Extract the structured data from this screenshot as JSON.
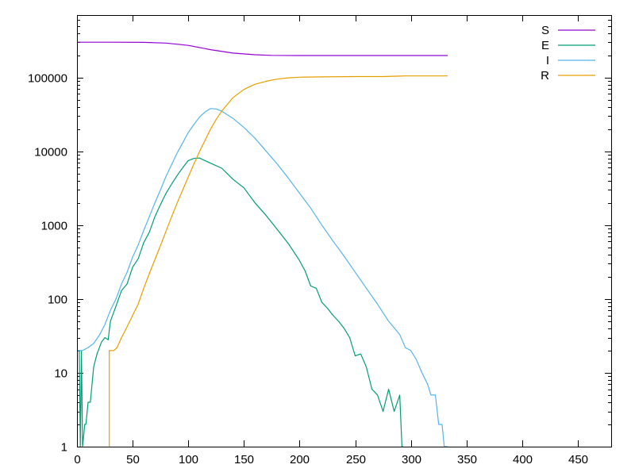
{
  "chart_data": {
    "type": "line",
    "title": "",
    "xlabel": "",
    "ylabel": "",
    "xlim": [
      0,
      480
    ],
    "ylim": [
      1,
      700000
    ],
    "y_scale": "log",
    "grid": false,
    "legend_position": "top-right",
    "x_ticks": [
      0,
      50,
      100,
      150,
      200,
      250,
      300,
      350,
      400,
      450
    ],
    "y_ticks": [
      1,
      10,
      100,
      1000,
      10000,
      100000
    ],
    "x_tick_labels": [
      "0",
      "50",
      "100",
      "150",
      "200",
      "250",
      "300",
      "350",
      "400",
      "450"
    ],
    "y_tick_labels": [
      "1",
      "10",
      "100",
      "1000",
      "10000",
      "100000"
    ],
    "series": [
      {
        "name": "S",
        "color": "#9400d3",
        "points": [
          [
            0,
            300000
          ],
          [
            30,
            300000
          ],
          [
            60,
            299000
          ],
          [
            80,
            292000
          ],
          [
            100,
            272000
          ],
          [
            120,
            238000
          ],
          [
            140,
            214000
          ],
          [
            160,
            203000
          ],
          [
            175,
            199000
          ],
          [
            200,
            198000
          ],
          [
            250,
            198000
          ],
          [
            300,
            198000
          ],
          [
            333,
            198000
          ]
        ]
      },
      {
        "name": "E",
        "color": "#009e73",
        "points": [
          [
            0,
            20
          ],
          [
            2,
            20
          ],
          [
            3,
            1
          ],
          [
            4,
            20
          ],
          [
            5,
            1
          ],
          [
            7,
            2
          ],
          [
            8,
            2
          ],
          [
            10,
            4
          ],
          [
            12,
            4
          ],
          [
            15,
            12
          ],
          [
            18,
            18
          ],
          [
            22,
            26
          ],
          [
            25,
            30
          ],
          [
            28,
            28
          ],
          [
            30,
            50
          ],
          [
            35,
            80
          ],
          [
            40,
            130
          ],
          [
            45,
            160
          ],
          [
            50,
            270
          ],
          [
            55,
            350
          ],
          [
            60,
            580
          ],
          [
            65,
            800
          ],
          [
            70,
            1300
          ],
          [
            75,
            1900
          ],
          [
            80,
            2700
          ],
          [
            85,
            3600
          ],
          [
            90,
            4700
          ],
          [
            95,
            6000
          ],
          [
            100,
            7500
          ],
          [
            105,
            8000
          ],
          [
            110,
            8100
          ],
          [
            115,
            7500
          ],
          [
            120,
            6900
          ],
          [
            130,
            5900
          ],
          [
            140,
            4200
          ],
          [
            150,
            3200
          ],
          [
            160,
            2000
          ],
          [
            170,
            1350
          ],
          [
            180,
            870
          ],
          [
            190,
            560
          ],
          [
            200,
            330
          ],
          [
            205,
            240
          ],
          [
            210,
            150
          ],
          [
            215,
            140
          ],
          [
            220,
            90
          ],
          [
            225,
            75
          ],
          [
            230,
            60
          ],
          [
            235,
            50
          ],
          [
            240,
            40
          ],
          [
            245,
            30
          ],
          [
            250,
            17
          ],
          [
            255,
            18
          ],
          [
            260,
            12
          ],
          [
            265,
            6
          ],
          [
            270,
            5
          ],
          [
            275,
            3
          ],
          [
            280,
            6
          ],
          [
            285,
            3
          ],
          [
            290,
            5
          ],
          [
            292,
            1
          ],
          [
            293,
            1
          ]
        ]
      },
      {
        "name": "I",
        "color": "#56b4e9",
        "points": [
          [
            0,
            20
          ],
          [
            5,
            20
          ],
          [
            10,
            22
          ],
          [
            15,
            25
          ],
          [
            20,
            32
          ],
          [
            25,
            45
          ],
          [
            30,
            70
          ],
          [
            35,
            100
          ],
          [
            40,
            160
          ],
          [
            45,
            230
          ],
          [
            50,
            370
          ],
          [
            55,
            540
          ],
          [
            60,
            850
          ],
          [
            65,
            1300
          ],
          [
            70,
            2000
          ],
          [
            75,
            3000
          ],
          [
            80,
            4600
          ],
          [
            85,
            6600
          ],
          [
            90,
            9500
          ],
          [
            95,
            13000
          ],
          [
            100,
            18000
          ],
          [
            105,
            23000
          ],
          [
            110,
            29000
          ],
          [
            115,
            34000
          ],
          [
            120,
            38000
          ],
          [
            125,
            37500
          ],
          [
            130,
            35000
          ],
          [
            140,
            28000
          ],
          [
            150,
            21000
          ],
          [
            160,
            15000
          ],
          [
            170,
            10000
          ],
          [
            180,
            6700
          ],
          [
            190,
            4300
          ],
          [
            200,
            2700
          ],
          [
            210,
            1700
          ],
          [
            220,
            1000
          ],
          [
            230,
            610
          ],
          [
            240,
            380
          ],
          [
            250,
            230
          ],
          [
            260,
            140
          ],
          [
            270,
            85
          ],
          [
            280,
            50
          ],
          [
            290,
            33
          ],
          [
            295,
            22
          ],
          [
            300,
            20
          ],
          [
            305,
            15
          ],
          [
            310,
            10
          ],
          [
            315,
            7
          ],
          [
            318,
            5
          ],
          [
            322,
            5
          ],
          [
            325,
            2
          ],
          [
            328,
            2
          ],
          [
            330,
            1
          ],
          [
            333,
            1
          ]
        ]
      },
      {
        "name": "R",
        "color": "#e69f00",
        "points": [
          [
            29,
            1
          ],
          [
            29,
            20
          ],
          [
            33,
            20
          ],
          [
            36,
            22
          ],
          [
            40,
            30
          ],
          [
            45,
            42
          ],
          [
            50,
            60
          ],
          [
            55,
            85
          ],
          [
            60,
            140
          ],
          [
            65,
            220
          ],
          [
            70,
            340
          ],
          [
            75,
            530
          ],
          [
            80,
            830
          ],
          [
            85,
            1300
          ],
          [
            90,
            2000
          ],
          [
            95,
            3000
          ],
          [
            100,
            4500
          ],
          [
            105,
            6700
          ],
          [
            110,
            9800
          ],
          [
            115,
            14000
          ],
          [
            120,
            20000
          ],
          [
            125,
            27000
          ],
          [
            130,
            35000
          ],
          [
            140,
            53000
          ],
          [
            150,
            69000
          ],
          [
            160,
            81000
          ],
          [
            170,
            89000
          ],
          [
            180,
            95000
          ],
          [
            190,
            99000
          ],
          [
            200,
            101000
          ],
          [
            220,
            102000
          ],
          [
            250,
            103000
          ],
          [
            275,
            103000
          ],
          [
            295,
            105000
          ],
          [
            333,
            105000
          ]
        ]
      }
    ]
  }
}
